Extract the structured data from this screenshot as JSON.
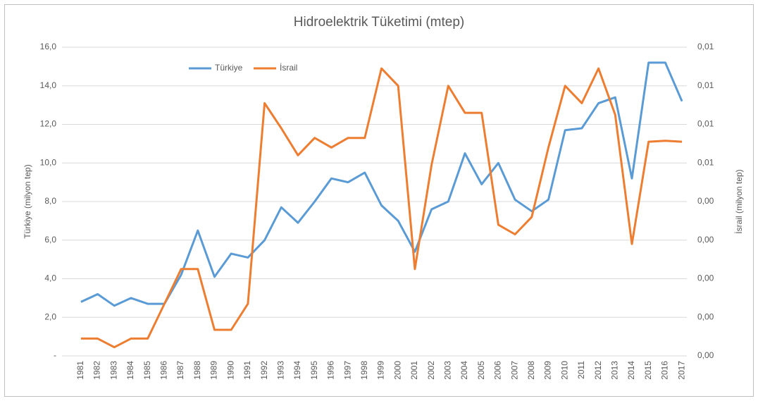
{
  "chart_data": {
    "type": "line",
    "title": "Hidroelektrik Tüketimi (mtep)",
    "ylabel": "Türkiye  (milyon tep)",
    "y2label": "İsrail (milyon tep)",
    "categories": [
      "1981",
      "1982",
      "1983",
      "1984",
      "1985",
      "1986",
      "1987",
      "1988",
      "1989",
      "1990",
      "1991",
      "1992",
      "1993",
      "1994",
      "1995",
      "1996",
      "1997",
      "1998",
      "1999",
      "2000",
      "2001",
      "2002",
      "2003",
      "2004",
      "2005",
      "2006",
      "2007",
      "2008",
      "2009",
      "2010",
      "2011",
      "2012",
      "2013",
      "2014",
      "2015",
      "2016",
      "2017"
    ],
    "series": [
      {
        "name": "Türkiye",
        "color": "#5b9bd5",
        "values": [
          2.8,
          3.2,
          2.6,
          3.0,
          2.7,
          2.7,
          4.2,
          6.5,
          4.1,
          5.3,
          5.1,
          6.0,
          7.7,
          6.9,
          8.0,
          9.2,
          9.0,
          9.5,
          7.8,
          7.0,
          5.4,
          7.6,
          8.0,
          10.5,
          8.9,
          10.0,
          8.1,
          7.5,
          8.1,
          11.7,
          11.8,
          13.1,
          13.4,
          9.2,
          15.2,
          15.2,
          13.2
        ]
      },
      {
        "name": "İsrail",
        "color": "#ed7d31",
        "axis": "y2",
        "values": [
          0.00045,
          0.00045,
          0.000225,
          0.00045,
          0.00045,
          0.00135,
          0.00225,
          0.00225,
          0.000675,
          0.000675,
          0.00135,
          0.00655,
          0.0059,
          0.0052,
          0.00565,
          0.0054,
          0.00565,
          0.00565,
          0.00745,
          0.007,
          0.00225,
          0.00495,
          0.007,
          0.0063,
          0.0063,
          0.0034,
          0.00315,
          0.0036,
          0.0054,
          0.007,
          0.00655,
          0.00745,
          0.00625,
          0.0029,
          0.00555,
          0.005575,
          0.00555
        ]
      }
    ],
    "ylim": [
      0,
      16
    ],
    "yticks": [
      {
        "value": 0,
        "label": "-"
      },
      {
        "value": 2,
        "label": "2,0"
      },
      {
        "value": 4,
        "label": "4,0"
      },
      {
        "value": 6,
        "label": "6,0"
      },
      {
        "value": 8,
        "label": "8,0"
      },
      {
        "value": 10,
        "label": "10,0"
      },
      {
        "value": 12,
        "label": "12,0"
      },
      {
        "value": 14,
        "label": "14,0"
      },
      {
        "value": 16,
        "label": "16,0"
      }
    ],
    "y2lim": [
      0,
      0.008
    ],
    "y2ticks": [
      {
        "value": 0,
        "label": "0,00"
      },
      {
        "value": 0.001,
        "label": "0,00"
      },
      {
        "value": 0.002,
        "label": "0,00"
      },
      {
        "value": 0.003,
        "label": "0,00"
      },
      {
        "value": 0.004,
        "label": "0,00"
      },
      {
        "value": 0.005,
        "label": "0,01"
      },
      {
        "value": 0.006,
        "label": "0,01"
      },
      {
        "value": 0.007,
        "label": "0,01"
      },
      {
        "value": 0.008,
        "label": "0,01"
      }
    ],
    "grid": true,
    "legend": "top"
  }
}
